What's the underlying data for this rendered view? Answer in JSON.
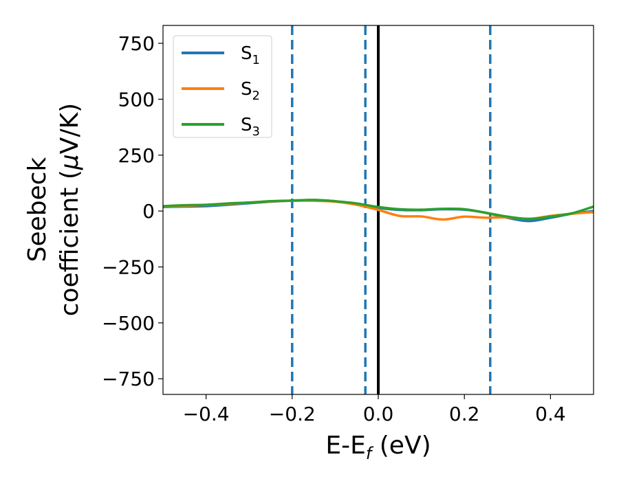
{
  "chart_data": {
    "type": "line",
    "xlabel": {
      "main": "E-E",
      "sub": "f",
      "tail": " (eV)"
    },
    "ylabel": {
      "line1": "Seebeck",
      "line2": "coefficient  (",
      "mu": "μ",
      "line2_tail": "V/K)"
    },
    "xlim": [
      -0.5,
      0.5
    ],
    "ylim": [
      -820,
      830
    ],
    "xticks": [
      -0.4,
      -0.2,
      0.0,
      0.2,
      0.4
    ],
    "xtick_labels": [
      "−0.4",
      "−0.2",
      "0.0",
      "0.2",
      "0.4"
    ],
    "yticks": [
      -750,
      -500,
      -250,
      0,
      250,
      500,
      750
    ],
    "ytick_labels": [
      "−750",
      "−500",
      "−250",
      "0",
      "250",
      "500",
      "750"
    ],
    "grid": false,
    "legend_position": "top-left",
    "series": [
      {
        "name": "S1",
        "label_main": "S",
        "label_sub": "1",
        "color": "#1f77b4",
        "x": [
          -0.5,
          -0.45,
          -0.4,
          -0.35,
          -0.3,
          -0.25,
          -0.2,
          -0.15,
          -0.1,
          -0.05,
          0.0,
          0.05,
          0.1,
          0.15,
          0.2,
          0.25,
          0.3,
          0.35,
          0.4,
          0.45,
          0.5
        ],
        "y": [
          18,
          20,
          22,
          28,
          35,
          42,
          46,
          48,
          44,
          30,
          14,
          5,
          4,
          8,
          6,
          -8,
          -30,
          -45,
          -30,
          -12,
          0
        ]
      },
      {
        "name": "S2",
        "label_main": "S",
        "label_sub": "2",
        "color": "#ff7f0e",
        "x": [
          -0.5,
          -0.45,
          -0.4,
          -0.35,
          -0.3,
          -0.25,
          -0.2,
          -0.15,
          -0.1,
          -0.05,
          0.0,
          0.05,
          0.1,
          0.15,
          0.2,
          0.25,
          0.3,
          0.35,
          0.4,
          0.45,
          0.5
        ],
        "y": [
          20,
          23,
          27,
          32,
          38,
          43,
          46,
          46,
          42,
          28,
          5,
          -22,
          -24,
          -38,
          -25,
          -30,
          -28,
          -35,
          -22,
          -12,
          -5
        ]
      },
      {
        "name": "S3",
        "label_main": "S",
        "label_sub": "3",
        "color": "#2ca02c",
        "x": [
          -0.5,
          -0.45,
          -0.4,
          -0.35,
          -0.3,
          -0.25,
          -0.2,
          -0.15,
          -0.1,
          -0.05,
          0.0,
          0.05,
          0.1,
          0.15,
          0.2,
          0.25,
          0.3,
          0.35,
          0.4,
          0.45,
          0.5
        ],
        "y": [
          22,
          26,
          28,
          34,
          38,
          44,
          47,
          50,
          44,
          34,
          18,
          8,
          6,
          10,
          8,
          -8,
          -25,
          -35,
          -25,
          -10,
          20
        ]
      }
    ],
    "vlines": [
      {
        "x": -0.2,
        "style": "dashed",
        "color": "#1f77b4"
      },
      {
        "x": -0.03,
        "style": "dashed",
        "color": "#1f77b4"
      },
      {
        "x": 0.0,
        "style": "solid",
        "color": "#000000"
      },
      {
        "x": 0.26,
        "style": "dashed",
        "color": "#1f77b4"
      }
    ]
  }
}
